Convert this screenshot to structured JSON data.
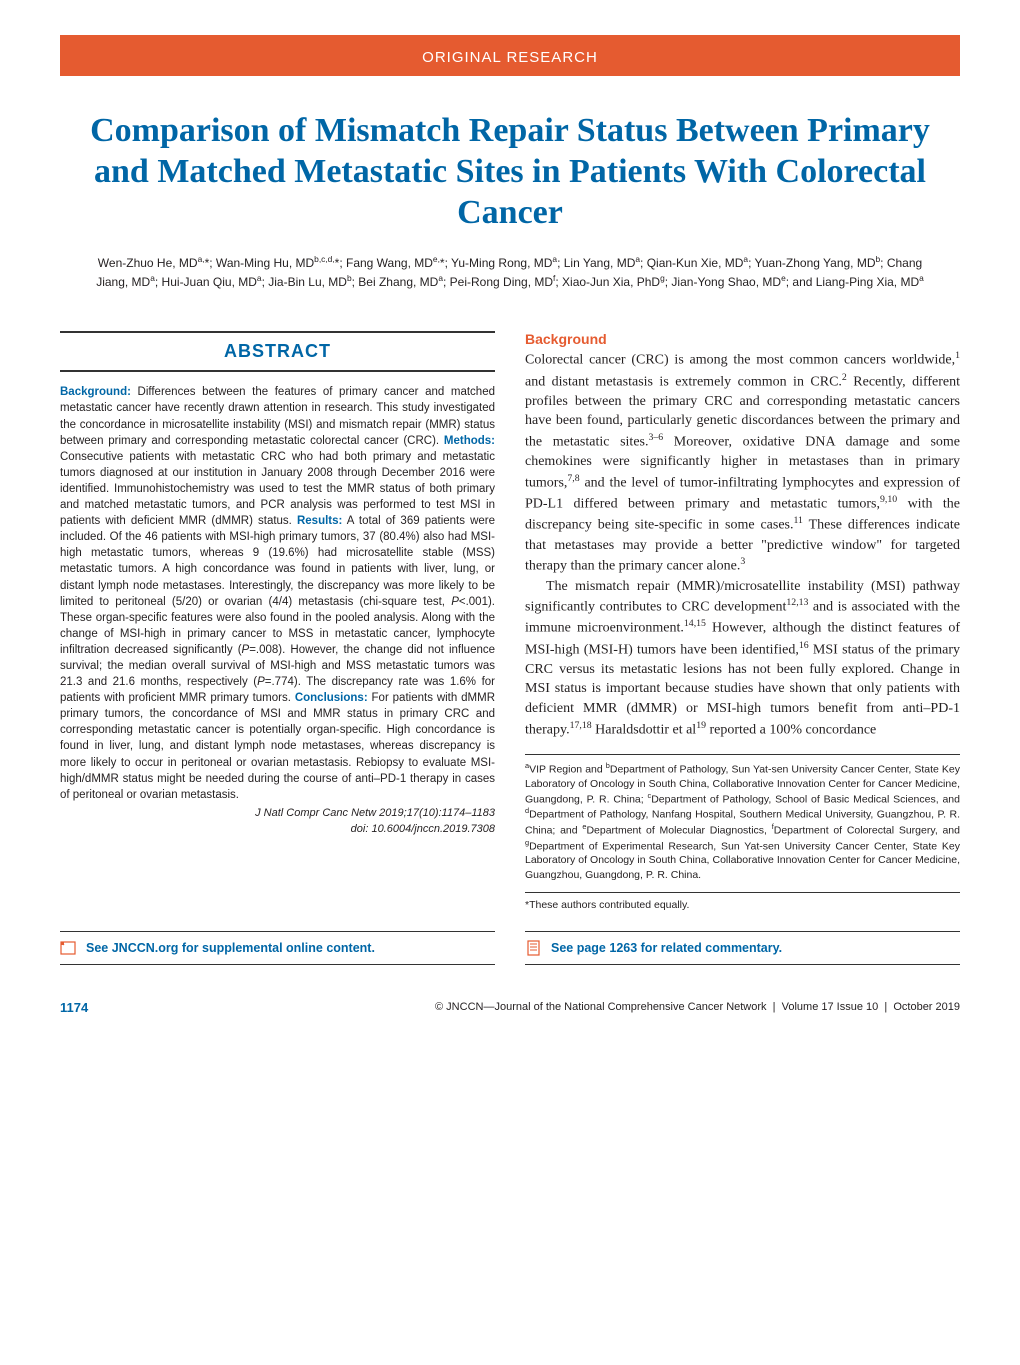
{
  "colors": {
    "accent_orange": "#e55b30",
    "accent_blue": "#0066a6",
    "text": "#231f20",
    "background": "#ffffff"
  },
  "header": {
    "category": "ORIGINAL RESEARCH"
  },
  "title": "Comparison of Mismatch Repair Status Between Primary and Matched Metastatic Sites in Patients With Colorectal Cancer",
  "authors_html": "Wen-Zhuo He, MD<sup>a,</sup>*; Wan-Ming Hu, MD<sup>b,c,d,</sup>*; Fang Wang, MD<sup>e,</sup>*; Yu-Ming Rong, MD<sup>a</sup>; Lin Yang, MD<sup>a</sup>; Qian-Kun Xie, MD<sup>a</sup>; Yuan-Zhong Yang, MD<sup>b</sup>; Chang Jiang, MD<sup>a</sup>; Hui-Juan Qiu, MD<sup>a</sup>; Jia-Bin Lu, MD<sup>b</sup>; Bei Zhang, MD<sup>a</sup>; Pei-Rong Ding, MD<sup>f</sup>; Xiao-Jun Xia, PhD<sup>g</sup>; Jian-Yong Shao, MD<sup>e</sup>; and Liang-Ping Xia, MD<sup>a</sup>",
  "abstract": {
    "heading": "ABSTRACT",
    "body_html": "<b>Background:</b> Differences between the features of primary cancer and matched metastatic cancer have recently drawn attention in research. This study investigated the concordance in microsatellite instability (MSI) and mismatch repair (MMR) status between primary and corresponding metastatic colorectal cancer (CRC). <b>Methods:</b> Consecutive patients with metastatic CRC who had both primary and metastatic tumors diagnosed at our institution in January 2008 through December 2016 were identified. Immunohistochemistry was used to test the MMR status of both primary and matched metastatic tumors, and PCR analysis was performed to test MSI in patients with deficient MMR (dMMR) status. <b>Results:</b> A total of 369 patients were included. Of the 46 patients with MSI-high primary tumors, 37 (80.4%) also had MSI-high metastatic tumors, whereas 9 (19.6%) had microsatellite stable (MSS) metastatic tumors. A high concordance was found in patients with liver, lung, or distant lymph node metastases. Interestingly, the discrepancy was more likely to be limited to peritoneal (5/20) or ovarian (4/4) metastasis (chi-square test, <i>P</i><.001). These organ-specific features were also found in the pooled analysis. Along with the change of MSI-high in primary cancer to MSS in metastatic cancer, lymphocyte infiltration decreased significantly (<i>P</i>=.008). However, the change did not influence survival; the median overall survival of MSI-high and MSS metastatic tumors was 21.3 and 21.6 months, respectively (<i>P</i>=.774). The discrepancy rate was 1.6% for patients with proficient MMR primary tumors. <b>Conclusions:</b> For patients with dMMR primary tumors, the concordance of MSI and MMR status in primary CRC and corresponding metastatic cancer is potentially organ-specific. High concordance is found in liver, lung, and distant lymph node metastases, whereas discrepancy is more likely to occur in peritoneal or ovarian metastasis. Rebiopsy to evaluate MSI-high/dMMR status might be needed during the course of anti–PD-1 therapy in cases of peritoneal or ovarian metastasis.",
    "citation": "J Natl Compr Canc Netw 2019;17(10):1174–1183",
    "doi": "doi: 10.6004/jnccn.2019.7308"
  },
  "background": {
    "heading": "Background",
    "para1_html": "Colorectal cancer (CRC) is among the most common cancers worldwide,<sup>1</sup> and distant metastasis is extremely common in CRC.<sup>2</sup> Recently, different profiles between the primary CRC and corresponding metastatic cancers have been found, particularly genetic discordances between the primary and the metastatic sites.<sup>3–6</sup> Moreover, oxidative DNA damage and some chemokines were significantly higher in metastases than in primary tumors,<sup>7,8</sup> and the level of tumor-infiltrating lymphocytes and expression of PD-L1 differed between primary and metastatic tumors,<sup>9,10</sup> with the discrepancy being site-specific in some cases.<sup>11</sup> These differences indicate that metastases may provide a better \"predictive window\" for targeted therapy than the primary cancer alone.<sup>3</sup>",
    "para2_html": "The mismatch repair (MMR)/microsatellite instability (MSI) pathway significantly contributes to CRC development<sup>12,13</sup> and is associated with the immune microenvironment.<sup>14,15</sup> However, although the distinct features of MSI-high (MSI-H) tumors have been identified,<sup>16</sup> MSI status of the primary CRC versus its metastatic lesions has not been fully explored. Change in MSI status is important because studies have shown that only patients with deficient MMR (dMMR) or MSI-high tumors benefit from anti–PD-1 therapy.<sup>17,18</sup> Haraldsdottir et al<sup>19</sup> reported a 100% concordance"
  },
  "affiliations_html": "<sup>a</sup>VIP Region and <sup>b</sup>Department of Pathology, Sun Yat-sen University Cancer Center, State Key Laboratory of Oncology in South China, Collaborative Innovation Center for Cancer Medicine, Guangdong, P. R. China; <sup>c</sup>Department of Pathology, School of Basic Medical Sciences, and <sup>d</sup>Department of Pathology, Nanfang Hospital, Southern Medical University, Guangzhou, P. R. China; and <sup>e</sup>Department of Molecular Diagnostics, <sup>f</sup>Department of Colorectal Surgery, and <sup>g</sup>Department of Experimental Research, Sun Yat-sen University Cancer Center, State Key Laboratory of Oncology in South China, Collaborative Innovation Center for Cancer Medicine, Guangzhou, Guangdong, P. R. China.",
  "equal_contrib": "*These authors contributed equally.",
  "footer_links": {
    "supplemental": "See JNCCN.org for supplemental online content.",
    "commentary": "See page 1263 for related commentary."
  },
  "footer": {
    "page_num": "1174",
    "copyright": "© JNCCN—Journal of the National Comprehensive Cancer Network",
    "issue": "Volume 17   Issue 10",
    "date": "October 2019"
  }
}
